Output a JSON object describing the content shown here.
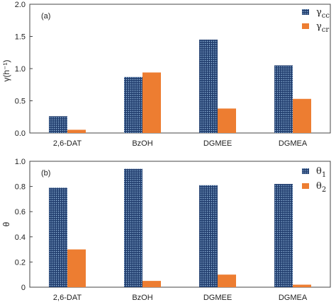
{
  "colors": {
    "series_a": "#1f3a6b",
    "series_a_grid": "#9fc4e6",
    "series_b": "#ed7d31"
  },
  "chart_data": [
    {
      "type": "bar",
      "panel_label": "(a)",
      "categories": [
        "2,6-DAT",
        "BzOH",
        "DGMEE",
        "DGMEA"
      ],
      "series": [
        {
          "name": "γ",
          "sub": "cc",
          "values": [
            0.26,
            0.87,
            1.45,
            1.05
          ],
          "pattern": "grid"
        },
        {
          "name": "γ",
          "sub": "cr",
          "values": [
            0.05,
            0.94,
            0.38,
            0.53
          ],
          "pattern": "solid"
        }
      ],
      "ylabel": "γ(h⁻¹)",
      "ylim": [
        0,
        2.0
      ],
      "yticks": [
        "0.0",
        "0.5",
        "1.0",
        "1.5",
        "2.0"
      ],
      "grid": false,
      "legend": "top-right"
    },
    {
      "type": "bar",
      "panel_label": "(b)",
      "categories": [
        "2,6-DAT",
        "BzOH",
        "DGMEE",
        "DGMEA"
      ],
      "series": [
        {
          "name": "θ",
          "sub": "1",
          "values": [
            0.79,
            0.94,
            0.81,
            0.82
          ],
          "pattern": "grid"
        },
        {
          "name": "θ",
          "sub": "2",
          "values": [
            0.3,
            0.05,
            0.1,
            0.02
          ],
          "pattern": "solid"
        }
      ],
      "ylabel": "θ",
      "ylim": [
        0,
        1.0
      ],
      "yticks": [
        "0",
        "0.2",
        "0.4",
        "0.6",
        "0.8",
        "1.0"
      ],
      "grid": false,
      "legend": "top-right"
    }
  ]
}
